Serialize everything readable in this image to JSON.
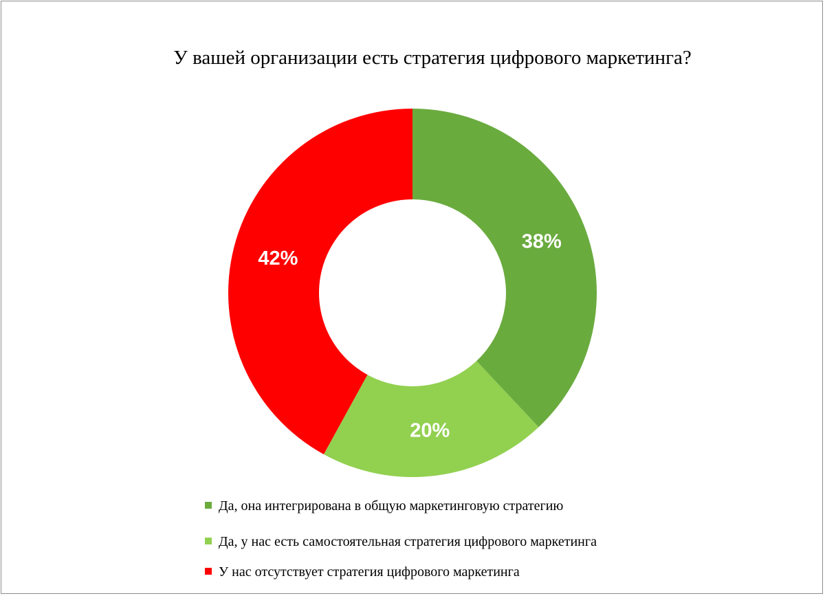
{
  "chart_data": {
    "type": "pie",
    "variant": "donut",
    "title": "У вашей организации есть стратегия цифрового маркетинга?",
    "legend_position": "bottom",
    "slices": [
      {
        "label": "Да, она интегрирована в общую маркетинговую стратегию",
        "value": 38,
        "display": "38%",
        "color": "#6aab3e"
      },
      {
        "label": "Да, у нас есть самостоятельная стратегия цифрового маркетинга",
        "value": 20,
        "display": "20%",
        "color": "#92d050"
      },
      {
        "label": "У нас отсутствует стратегия цифрового маркетинга",
        "value": 42,
        "display": "42%",
        "color": "#ff0000"
      }
    ]
  }
}
